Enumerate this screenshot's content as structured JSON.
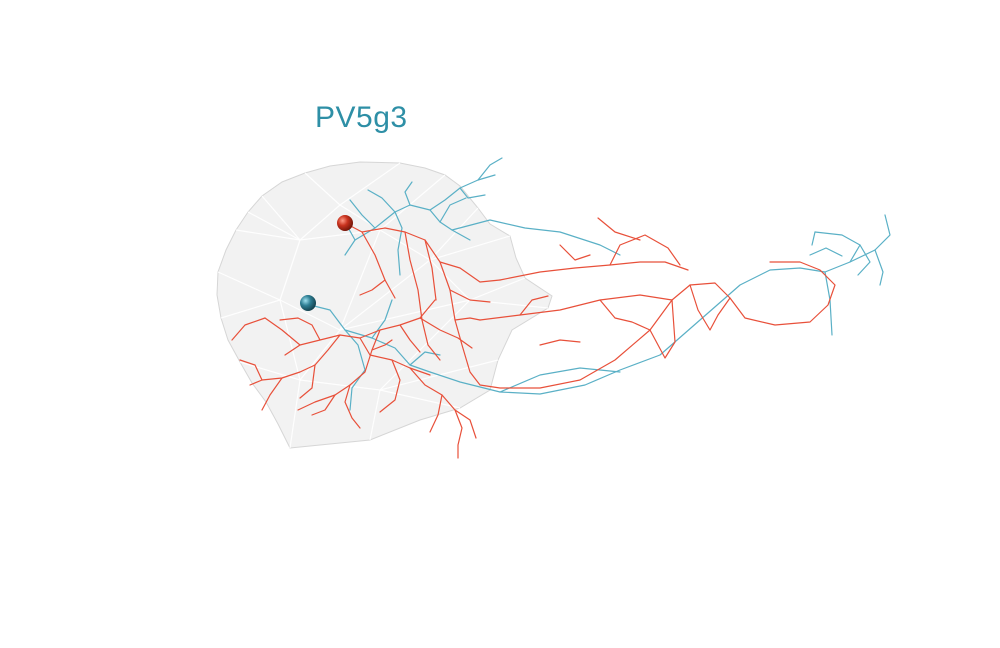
{
  "figure": {
    "title": "PV5g3"
  },
  "colors": {
    "title": "#2e8fa6",
    "neuron_red": "#e8503a",
    "neuron_blue": "#5ab0c6",
    "soma_red": "#c8321e",
    "soma_blue": "#2f7f94",
    "mesh_fill": "#eeeeee",
    "mesh_stroke": "#d6d6d6"
  }
}
